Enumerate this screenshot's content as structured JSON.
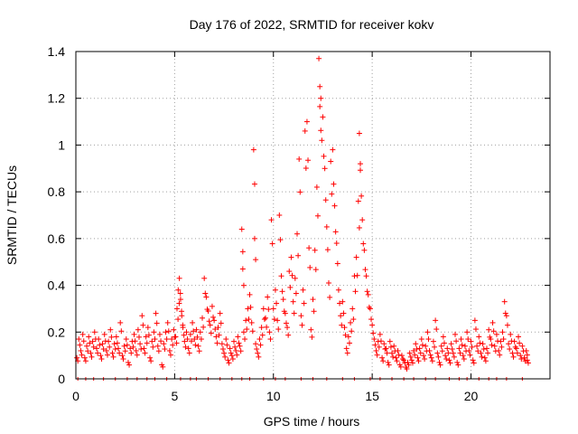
{
  "chart_data": {
    "type": "scatter",
    "title": "Day 176 of 2022, SRMTID for receiver kokv",
    "xlabel": "GPS time / hours",
    "ylabel": "SRMTID / TECUs",
    "xlim": [
      0,
      24
    ],
    "ylim": [
      0,
      1.4
    ],
    "xticks": [
      0,
      5,
      10,
      15,
      20
    ],
    "xtick_labels": [
      "0",
      "5",
      "10",
      "15",
      "20"
    ],
    "yticks": [
      0,
      0.2,
      0.4,
      0.6,
      0.8,
      1.0,
      1.2,
      1.4
    ],
    "ytick_labels": [
      "0",
      "0.2",
      "0.4",
      "0.6",
      "0.8",
      "1",
      "1.2",
      "1.4"
    ],
    "grid": true,
    "marker": "plus",
    "color": "#ff0000",
    "series": [
      {
        "name": "SRMTID",
        "points": [
          [
            0.05,
            0.09
          ],
          [
            0.15,
            0.17
          ],
          [
            0.25,
            0.12
          ],
          [
            0.35,
            0.19
          ],
          [
            0.45,
            0.09
          ],
          [
            0.55,
            0.14
          ],
          [
            0.65,
            0.18
          ],
          [
            0.75,
            0.11
          ],
          [
            0.85,
            0.16
          ],
          [
            0.95,
            0.2
          ],
          [
            1.05,
            0.13
          ],
          [
            1.15,
            0.17
          ],
          [
            1.25,
            0.1
          ],
          [
            1.35,
            0.15
          ],
          [
            1.45,
            0.19
          ],
          [
            1.55,
            0.12
          ],
          [
            1.65,
            0.16
          ],
          [
            1.75,
            0.21
          ],
          [
            1.85,
            0.11
          ],
          [
            1.95,
            0.15
          ],
          [
            2.05,
            0.18
          ],
          [
            2.15,
            0.13
          ],
          [
            2.25,
            0.24
          ],
          [
            2.35,
            0.1
          ],
          [
            2.45,
            0.14
          ],
          [
            2.55,
            0.17
          ],
          [
            2.65,
            0.07
          ],
          [
            2.75,
            0.13
          ],
          [
            2.85,
            0.16
          ],
          [
            2.95,
            0.19
          ],
          [
            3.05,
            0.12
          ],
          [
            3.15,
            0.21
          ],
          [
            3.25,
            0.15
          ],
          [
            3.35,
            0.27
          ],
          [
            3.45,
            0.13
          ],
          [
            3.55,
            0.18
          ],
          [
            3.65,
            0.22
          ],
          [
            3.75,
            0.09
          ],
          [
            3.85,
            0.16
          ],
          [
            3.95,
            0.2
          ],
          [
            4.05,
            0.28
          ],
          [
            4.15,
            0.14
          ],
          [
            4.25,
            0.19
          ],
          [
            4.35,
            0.06
          ],
          [
            4.45,
            0.15
          ],
          [
            4.55,
            0.2
          ],
          [
            4.65,
            0.24
          ],
          [
            4.75,
            0.12
          ],
          [
            4.85,
            0.17
          ],
          [
            4.95,
            0.21
          ],
          [
            5.05,
            0.18
          ],
          [
            5.12,
            0.3
          ],
          [
            5.18,
            0.38
          ],
          [
            5.24,
            0.43
          ],
          [
            5.3,
            0.34
          ],
          [
            5.36,
            0.27
          ],
          [
            5.42,
            0.22
          ],
          [
            5.5,
            0.16
          ],
          [
            5.6,
            0.2
          ],
          [
            5.7,
            0.13
          ],
          [
            5.8,
            0.19
          ],
          [
            5.9,
            0.24
          ],
          [
            6.0,
            0.17
          ],
          [
            6.1,
            0.21
          ],
          [
            6.2,
            0.14
          ],
          [
            6.3,
            0.2
          ],
          [
            6.4,
            0.26
          ],
          [
            6.5,
            0.43
          ],
          [
            6.6,
            0.35
          ],
          [
            6.7,
            0.29
          ],
          [
            6.8,
            0.23
          ],
          [
            6.9,
            0.31
          ],
          [
            7.0,
            0.25
          ],
          [
            7.1,
            0.18
          ],
          [
            7.2,
            0.22
          ],
          [
            7.3,
            0.28
          ],
          [
            7.4,
            0.15
          ],
          [
            7.5,
            0.11
          ],
          [
            7.6,
            0.17
          ],
          [
            7.7,
            0.08
          ],
          [
            7.8,
            0.13
          ],
          [
            7.9,
            0.1
          ],
          [
            8.0,
            0.16
          ],
          [
            8.1,
            0.12
          ],
          [
            8.2,
            0.18
          ],
          [
            8.3,
            0.14
          ],
          [
            8.4,
            0.64
          ],
          [
            8.45,
            0.47
          ],
          [
            8.5,
            0.2
          ],
          [
            8.6,
            0.25
          ],
          [
            8.7,
            0.3
          ],
          [
            8.8,
            0.36
          ],
          [
            8.9,
            0.24
          ],
          [
            9.0,
            0.98
          ],
          [
            9.05,
            0.6
          ],
          [
            9.1,
            0.15
          ],
          [
            9.2,
            0.11
          ],
          [
            9.3,
            0.17
          ],
          [
            9.4,
            0.22
          ],
          [
            9.5,
            0.3
          ],
          [
            9.6,
            0.26
          ],
          [
            9.7,
            0.35
          ],
          [
            9.8,
            0.2
          ],
          [
            9.9,
            0.68
          ],
          [
            10.0,
            0.3
          ],
          [
            10.1,
            0.38
          ],
          [
            10.2,
            0.25
          ],
          [
            10.3,
            0.7
          ],
          [
            10.4,
            0.44
          ],
          [
            10.5,
            0.34
          ],
          [
            10.6,
            0.28
          ],
          [
            10.7,
            0.22
          ],
          [
            10.8,
            0.46
          ],
          [
            10.9,
            0.52
          ],
          [
            11.0,
            0.33
          ],
          [
            11.1,
            0.43
          ],
          [
            11.2,
            0.62
          ],
          [
            11.3,
            0.94
          ],
          [
            11.4,
            0.27
          ],
          [
            11.5,
            0.38
          ],
          [
            11.6,
            1.06
          ],
          [
            11.7,
            1.1
          ],
          [
            11.8,
            0.56
          ],
          [
            11.9,
            0.21
          ],
          [
            12.0,
            0.34
          ],
          [
            12.1,
            0.55
          ],
          [
            12.2,
            0.82
          ],
          [
            12.3,
            1.37
          ],
          [
            12.35,
            1.25
          ],
          [
            12.4,
            1.2
          ],
          [
            12.5,
            1.12
          ],
          [
            12.6,
            0.9
          ],
          [
            12.7,
            0.65
          ],
          [
            12.8,
            0.41
          ],
          [
            12.9,
            0.93
          ],
          [
            13.0,
            0.98
          ],
          [
            13.1,
            0.74
          ],
          [
            13.2,
            0.58
          ],
          [
            13.3,
            0.38
          ],
          [
            13.4,
            0.27
          ],
          [
            13.5,
            0.33
          ],
          [
            13.6,
            0.22
          ],
          [
            13.7,
            0.13
          ],
          [
            13.8,
            0.18
          ],
          [
            13.9,
            0.24
          ],
          [
            14.0,
            0.3
          ],
          [
            14.1,
            0.44
          ],
          [
            14.2,
            0.52
          ],
          [
            14.3,
            0.76
          ],
          [
            14.35,
            1.05
          ],
          [
            14.4,
            0.92
          ],
          [
            14.5,
            0.68
          ],
          [
            14.6,
            0.55
          ],
          [
            14.7,
            0.44
          ],
          [
            14.8,
            0.36
          ],
          [
            14.9,
            0.3
          ],
          [
            15.0,
            0.23
          ],
          [
            15.1,
            0.17
          ],
          [
            15.2,
            0.12
          ],
          [
            15.3,
            0.16
          ],
          [
            15.4,
            0.19
          ],
          [
            15.5,
            0.09
          ],
          [
            15.6,
            0.15
          ],
          [
            15.7,
            0.13
          ],
          [
            15.8,
            0.07
          ],
          [
            15.9,
            0.16
          ],
          [
            16.0,
            0.11
          ],
          [
            16.1,
            0.14
          ],
          [
            16.2,
            0.09
          ],
          [
            16.3,
            0.12
          ],
          [
            16.4,
            0.06
          ],
          [
            16.5,
            0.1
          ],
          [
            16.6,
            0.08
          ],
          [
            16.7,
            0.05
          ],
          [
            16.8,
            0.07
          ],
          [
            16.9,
            0.11
          ],
          [
            17.0,
            0.08
          ],
          [
            17.1,
            0.12
          ],
          [
            17.2,
            0.15
          ],
          [
            17.3,
            0.09
          ],
          [
            17.4,
            0.13
          ],
          [
            17.5,
            0.17
          ],
          [
            17.6,
            0.1
          ],
          [
            17.7,
            0.14
          ],
          [
            17.8,
            0.2
          ],
          [
            17.9,
            0.12
          ],
          [
            18.0,
            0.09
          ],
          [
            18.1,
            0.16
          ],
          [
            18.2,
            0.25
          ],
          [
            18.3,
            0.11
          ],
          [
            18.4,
            0.07
          ],
          [
            18.5,
            0.14
          ],
          [
            18.6,
            0.18
          ],
          [
            18.7,
            0.1
          ],
          [
            18.8,
            0.13
          ],
          [
            18.9,
            0.08
          ],
          [
            19.0,
            0.15
          ],
          [
            19.1,
            0.11
          ],
          [
            19.2,
            0.19
          ],
          [
            19.3,
            0.07
          ],
          [
            19.4,
            0.13
          ],
          [
            19.5,
            0.17
          ],
          [
            19.6,
            0.1
          ],
          [
            19.7,
            0.14
          ],
          [
            19.8,
            0.2
          ],
          [
            19.9,
            0.12
          ],
          [
            20.0,
            0.16
          ],
          [
            20.1,
            0.08
          ],
          [
            20.2,
            0.25
          ],
          [
            20.3,
            0.14
          ],
          [
            20.4,
            0.18
          ],
          [
            20.5,
            0.11
          ],
          [
            20.6,
            0.15
          ],
          [
            20.7,
            0.09
          ],
          [
            20.8,
            0.13
          ],
          [
            20.9,
            0.21
          ],
          [
            21.0,
            0.17
          ],
          [
            21.1,
            0.24
          ],
          [
            21.2,
            0.14
          ],
          [
            21.3,
            0.19
          ],
          [
            21.4,
            0.12
          ],
          [
            21.5,
            0.16
          ],
          [
            21.6,
            0.2
          ],
          [
            21.7,
            0.33
          ],
          [
            21.8,
            0.27
          ],
          [
            21.9,
            0.15
          ],
          [
            22.0,
            0.19
          ],
          [
            22.1,
            0.11
          ],
          [
            22.2,
            0.16
          ],
          [
            22.3,
            0.13
          ],
          [
            22.4,
            0.18
          ],
          [
            22.5,
            0.1
          ],
          [
            22.6,
            0.14
          ],
          [
            22.7,
            0.09
          ],
          [
            22.8,
            0.12
          ],
          [
            22.85,
            0.08
          ]
        ],
        "zero_points_x": [
          0.1,
          0.5,
          0.9,
          1.4,
          2.0,
          2.6,
          3.1,
          3.6,
          4.0,
          4.6,
          5.3,
          5.8,
          6.1,
          6.7,
          7.3,
          7.9,
          8.4,
          8.8,
          9.5,
          10.1,
          10.6,
          11.4,
          12.0,
          12.7,
          13.5,
          14.1,
          14.9,
          15.4,
          16.0,
          16.6,
          17.1,
          17.7,
          18.2,
          18.9,
          19.4,
          19.8,
          20.4,
          20.9,
          21.3,
          21.8,
          22.6
        ]
      }
    ]
  }
}
